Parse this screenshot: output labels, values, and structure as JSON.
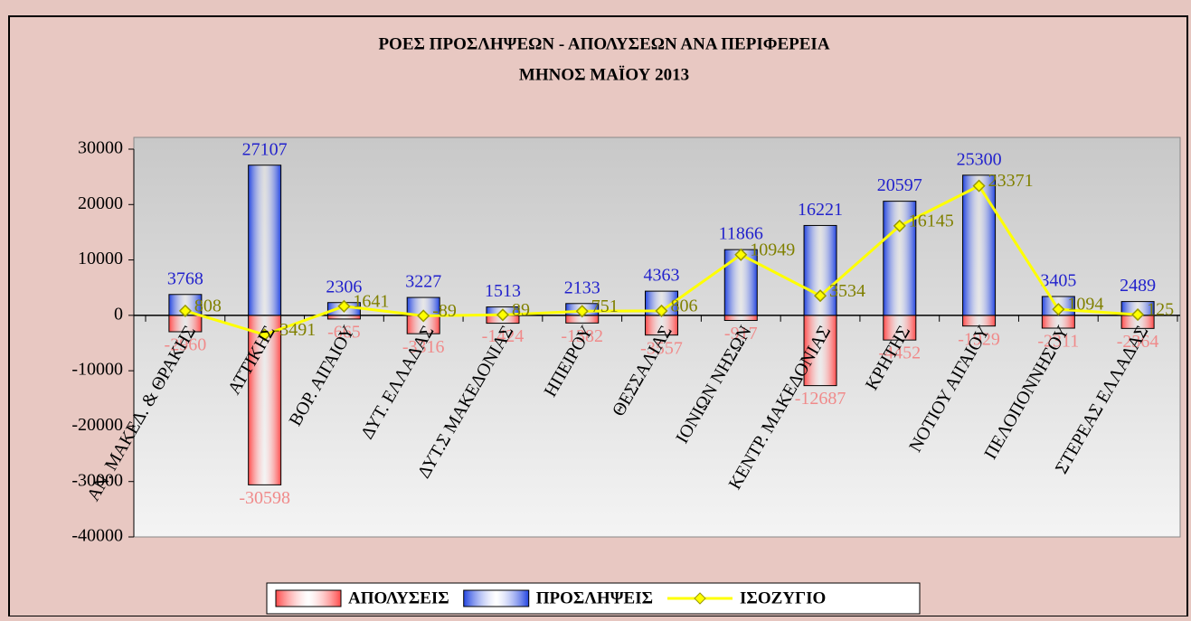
{
  "chart_data": {
    "type": "bar",
    "title": "ΡΟΕΣ ΠΡΟΣΛΗΨΕΩΝ - ΑΠΟΛΥΣΕΩΝ ΑΝΑ ΠΕΡΙΦΕΡΕΙΑ",
    "subtitle": "ΜΗΝΟΣ ΜΑΪΟΥ 2013",
    "categories": [
      "ΑΝ. ΜΑΚΕΔ. & ΘΡΑΚΗΣ",
      "ΑΤΤΙΚΗΣ",
      "ΒΟΡ. ΑΙΓΑΙΟΥ",
      "ΔΥΤ. ΕΛΛΑΔΑΣ",
      "ΔΥΤ.Σ ΜΑΚΕΔΟΝΙΑΣ",
      "ΗΠΕΙΡΟΥ",
      "ΘΕΣΣΑΛΙΑΣ",
      "ΙΟΝΙΩΝ ΝΗΣΩΝ",
      "ΚΕΝΤΡ. ΜΑΚΕΔΟΝΙΑΣ",
      "ΚΡΗΤΗΣ",
      "ΝΟΤΙΟΥ ΑΙΓΑΙΟΥ",
      "ΠΕΛΟΠΟΝΝΗΣΟΥ",
      "ΣΤΕΡΕΑΣ ΕΛΛΑΔΑΣ"
    ],
    "series": [
      {
        "name": "ΑΠΟΛΥΣΕΙΣ",
        "type": "bar",
        "color": "#ff4a4a",
        "label_color": "#f08a8a",
        "values": [
          -2960,
          -30598,
          -665,
          -3316,
          -1424,
          -1382,
          -3557,
          -917,
          -12687,
          -4452,
          -1929,
          -2311,
          -2364
        ]
      },
      {
        "name": "ΠΡΟΣΛΗΨΕΙΣ",
        "type": "bar",
        "color": "#2244e0",
        "label_color": "#2222cc",
        "values": [
          3768,
          27107,
          2306,
          3227,
          1513,
          2133,
          4363,
          11866,
          16221,
          20597,
          25300,
          3405,
          2489
        ]
      },
      {
        "name": "ΙΣΟΖΥΓΙΟ",
        "type": "line",
        "color": "#ffff00",
        "marker_color": "#999900",
        "label_color": "#808000",
        "values": [
          808,
          -3491,
          1641,
          -89,
          89,
          751,
          806,
          10949,
          3534,
          16145,
          23371,
          1094,
          125
        ]
      }
    ],
    "ylim": [
      -40000,
      30000
    ],
    "yticks": [
      -40000,
      -30000,
      -20000,
      -10000,
      0,
      10000,
      20000,
      30000
    ],
    "legend": "bottom"
  }
}
